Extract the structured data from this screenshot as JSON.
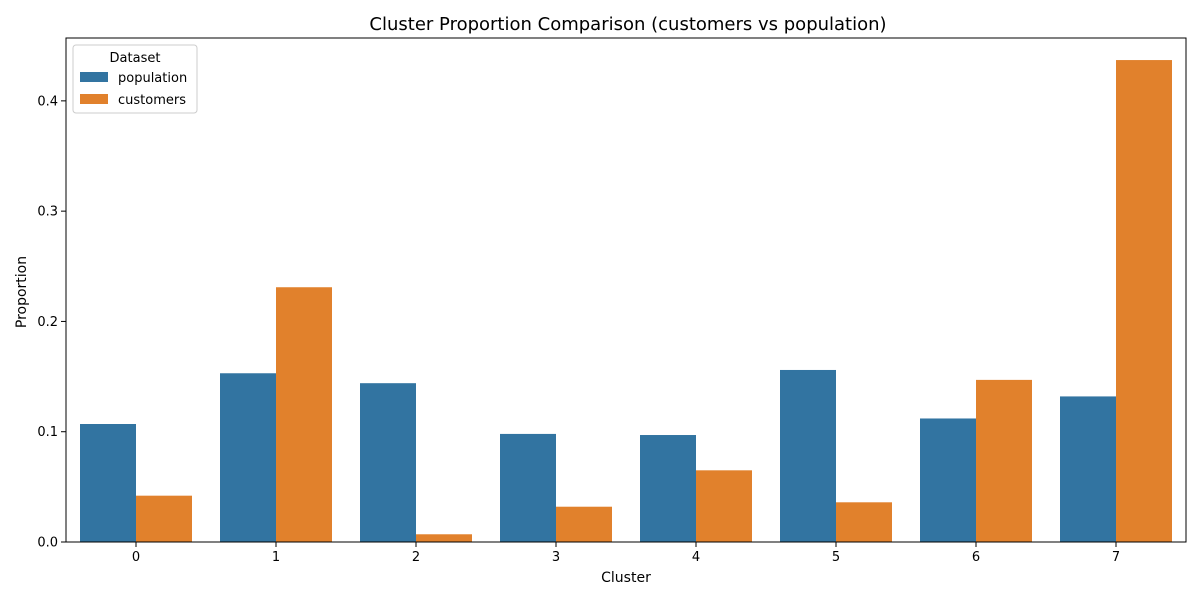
{
  "chart_data": {
    "type": "bar",
    "title": "Cluster Proportion Comparison (customers vs population)",
    "xlabel": "Cluster",
    "ylabel": "Proportion",
    "categories": [
      "0",
      "1",
      "2",
      "3",
      "4",
      "5",
      "6",
      "7"
    ],
    "ylim": [
      0,
      0.457
    ],
    "yticks": [
      "0.0",
      "0.1",
      "0.2",
      "0.3",
      "0.4"
    ],
    "grid": false,
    "legend": {
      "title": "Dataset",
      "placement": "top-left"
    },
    "series": [
      {
        "name": "population",
        "color": "#3274a1",
        "values": [
          0.107,
          0.153,
          0.144,
          0.098,
          0.097,
          0.156,
          0.112,
          0.132
        ]
      },
      {
        "name": "customers",
        "color": "#e1812c",
        "values": [
          0.042,
          0.231,
          0.007,
          0.032,
          0.065,
          0.036,
          0.147,
          0.437
        ]
      }
    ]
  }
}
